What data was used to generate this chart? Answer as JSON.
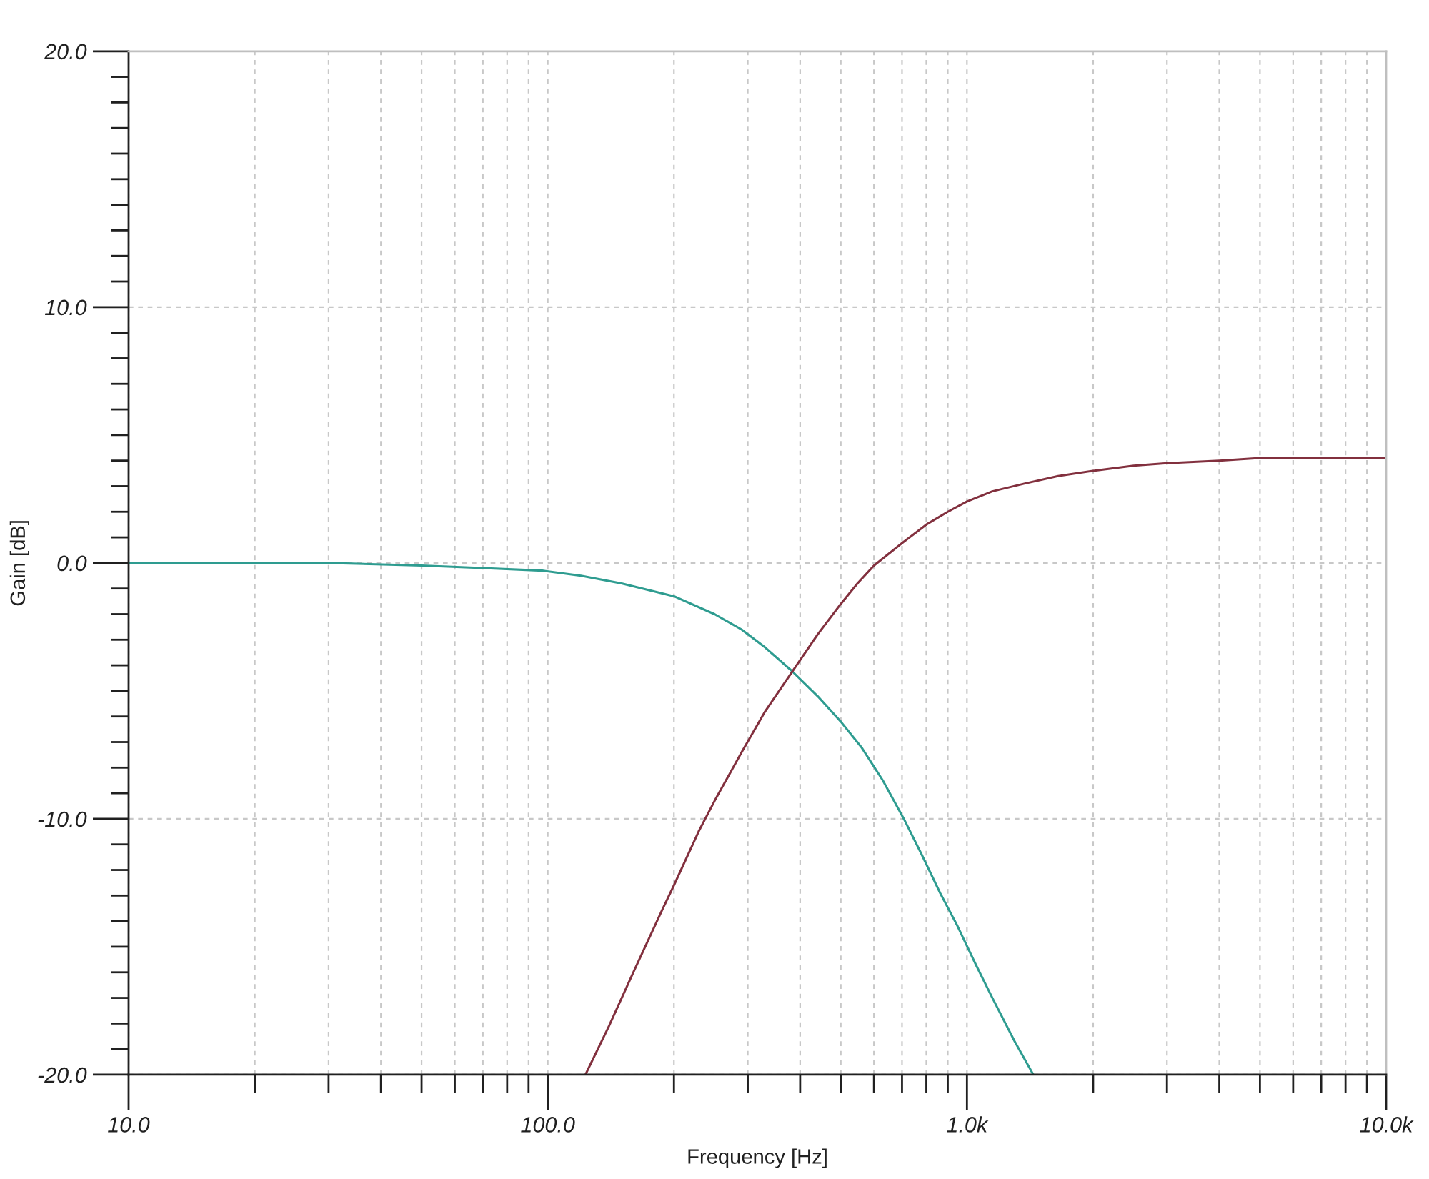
{
  "chart_data": {
    "type": "line",
    "xlabel": "Frequency [Hz]",
    "ylabel": "Gain [dB]",
    "log": "x",
    "xlim": [
      10,
      10000
    ],
    "ylim": [
      -20,
      20
    ],
    "xticks": [
      {
        "value": 10,
        "label": "10.0"
      },
      {
        "value": 20,
        "label": null
      },
      {
        "value": 30,
        "label": null
      },
      {
        "value": 40,
        "label": null
      },
      {
        "value": 50,
        "label": null
      },
      {
        "value": 60,
        "label": null
      },
      {
        "value": 70,
        "label": null
      },
      {
        "value": 80,
        "label": null
      },
      {
        "value": 90,
        "label": null
      },
      {
        "value": 100,
        "label": "100.0"
      },
      {
        "value": 200,
        "label": null
      },
      {
        "value": 300,
        "label": null
      },
      {
        "value": 400,
        "label": null
      },
      {
        "value": 500,
        "label": null
      },
      {
        "value": 600,
        "label": null
      },
      {
        "value": 700,
        "label": null
      },
      {
        "value": 800,
        "label": null
      },
      {
        "value": 900,
        "label": null
      },
      {
        "value": 1000,
        "label": "1.0k"
      },
      {
        "value": 2000,
        "label": null
      },
      {
        "value": 3000,
        "label": null
      },
      {
        "value": 4000,
        "label": null
      },
      {
        "value": 5000,
        "label": null
      },
      {
        "value": 6000,
        "label": null
      },
      {
        "value": 7000,
        "label": null
      },
      {
        "value": 8000,
        "label": null
      },
      {
        "value": 9000,
        "label": null
      },
      {
        "value": 10000,
        "label": "10.0k"
      }
    ],
    "yticks": [
      {
        "value": -20,
        "label": "-20.0"
      },
      {
        "value": -19,
        "label": null
      },
      {
        "value": -18,
        "label": null
      },
      {
        "value": -17,
        "label": null
      },
      {
        "value": -16,
        "label": null
      },
      {
        "value": -15,
        "label": null
      },
      {
        "value": -14,
        "label": null
      },
      {
        "value": -13,
        "label": null
      },
      {
        "value": -12,
        "label": null
      },
      {
        "value": -11,
        "label": null
      },
      {
        "value": -10,
        "label": "-10.0"
      },
      {
        "value": -9,
        "label": null
      },
      {
        "value": -8,
        "label": null
      },
      {
        "value": -7,
        "label": null
      },
      {
        "value": -6,
        "label": null
      },
      {
        "value": -5,
        "label": null
      },
      {
        "value": -4,
        "label": null
      },
      {
        "value": -3,
        "label": null
      },
      {
        "value": -2,
        "label": null
      },
      {
        "value": -1,
        "label": null
      },
      {
        "value": 0,
        "label": "0.0"
      },
      {
        "value": 1,
        "label": null
      },
      {
        "value": 2,
        "label": null
      },
      {
        "value": 3,
        "label": null
      },
      {
        "value": 4,
        "label": null
      },
      {
        "value": 5,
        "label": null
      },
      {
        "value": 6,
        "label": null
      },
      {
        "value": 7,
        "label": null
      },
      {
        "value": 8,
        "label": null
      },
      {
        "value": 9,
        "label": null
      },
      {
        "value": 10,
        "label": "10.0"
      },
      {
        "value": 11,
        "label": null
      },
      {
        "value": 12,
        "label": null
      },
      {
        "value": 13,
        "label": null
      },
      {
        "value": 14,
        "label": null
      },
      {
        "value": 15,
        "label": null
      },
      {
        "value": 16,
        "label": null
      },
      {
        "value": 17,
        "label": null
      },
      {
        "value": 18,
        "label": null
      },
      {
        "value": 19,
        "label": null
      },
      {
        "value": 20,
        "label": "20.0"
      }
    ],
    "grid": true,
    "line_style": "solid",
    "series": [
      {
        "color": "#2e9c90",
        "x": [
          10,
          20,
          30,
          50,
          70,
          97,
          120,
          150,
          200,
          250,
          290,
          330,
          381,
          440,
          500,
          560,
          630,
          707,
          780,
          863,
          950,
          1050,
          1150,
          1300,
          1440
        ],
        "values": [
          0.0,
          0.0,
          0.0,
          -0.1,
          -0.2,
          -0.3,
          -0.5,
          -0.8,
          -1.3,
          -2.0,
          -2.6,
          -3.3,
          -4.2,
          -5.2,
          -6.2,
          -7.2,
          -8.5,
          -10.0,
          -11.4,
          -12.9,
          -14.2,
          -15.7,
          -17.0,
          -18.7,
          -20.0
        ]
      },
      {
        "color": "#82303e",
        "x": [
          123,
          140,
          160,
          187,
          200,
          229,
          250,
          290,
          330,
          381,
          440,
          500,
          548,
          600,
          703,
          800,
          900,
          1000,
          1150,
          1370,
          1650,
          2000,
          2500,
          3000,
          4000,
          5000,
          7000,
          10000
        ],
        "values": [
          -20.0,
          -18.1,
          -16.0,
          -13.6,
          -12.6,
          -10.5,
          -9.3,
          -7.4,
          -5.8,
          -4.3,
          -2.8,
          -1.6,
          -0.8,
          -0.1,
          0.8,
          1.5,
          2.0,
          2.4,
          2.8,
          3.1,
          3.4,
          3.6,
          3.8,
          3.9,
          4.0,
          4.1,
          4.1,
          4.1
        ]
      }
    ]
  }
}
